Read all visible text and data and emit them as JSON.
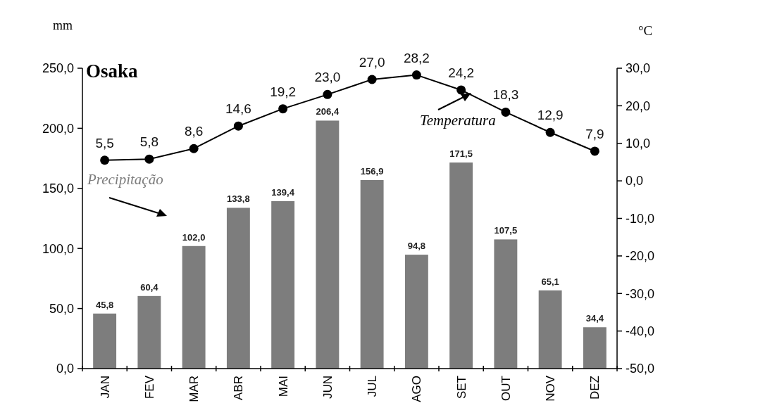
{
  "chart_data": {
    "type": "bar",
    "title": "Osaka",
    "ylabel": "mm",
    "y2label": "°C",
    "categories": [
      "JAN",
      "FEV",
      "MAR",
      "ABR",
      "MAI",
      "JUN",
      "JUL",
      "AGO",
      "SET",
      "OUT",
      "NOV",
      "DEZ"
    ],
    "series": [
      {
        "name": "Precipitação",
        "color": "#7d7d7d",
        "values": [
          45.8,
          60.4,
          102.0,
          133.8,
          139.4,
          206.4,
          156.9,
          94.8,
          171.5,
          107.5,
          65.1,
          34.4
        ],
        "value_labels": [
          "45,8",
          "60,4",
          "102,0",
          "133,8",
          "139,4",
          "206,4",
          "156,9",
          "94,8",
          "171,5",
          "107,5",
          "65,1",
          "34,4"
        ]
      },
      {
        "name": "Temperatura",
        "type": "line",
        "axis": "y2",
        "color": "#000000",
        "marker": "circle",
        "values": [
          5.5,
          5.8,
          8.6,
          14.6,
          19.2,
          23.0,
          27.0,
          28.2,
          24.2,
          18.3,
          12.9,
          7.9
        ],
        "value_labels": [
          "5,5",
          "5,8",
          "8,6",
          "14,6",
          "19,2",
          "23,0",
          "27,0",
          "28,2",
          "24,2",
          "18,3",
          "12,9",
          "7,9"
        ]
      }
    ],
    "ylim": [
      0,
      250
    ],
    "yticks": [
      {
        "value": 0,
        "label": "0,0"
      },
      {
        "value": 50,
        "label": "50,0"
      },
      {
        "value": 100,
        "label": "100,0"
      },
      {
        "value": 150,
        "label": "150,0"
      },
      {
        "value": 200,
        "label": "200,0"
      },
      {
        "value": 250,
        "label": "250,0"
      }
    ],
    "y2lim": [
      -50,
      30
    ],
    "y2ticks": [
      {
        "value": -50,
        "label": "-50,0"
      },
      {
        "value": -40,
        "label": "-40,0"
      },
      {
        "value": -30,
        "label": "-30,0"
      },
      {
        "value": -20,
        "label": "-20,0"
      },
      {
        "value": -10,
        "label": "-10,0"
      },
      {
        "value": 0,
        "label": "0,0"
      },
      {
        "value": 10,
        "label": "10,0"
      },
      {
        "value": 20,
        "label": "20,0"
      },
      {
        "value": 30,
        "label": "30,0"
      }
    ]
  }
}
